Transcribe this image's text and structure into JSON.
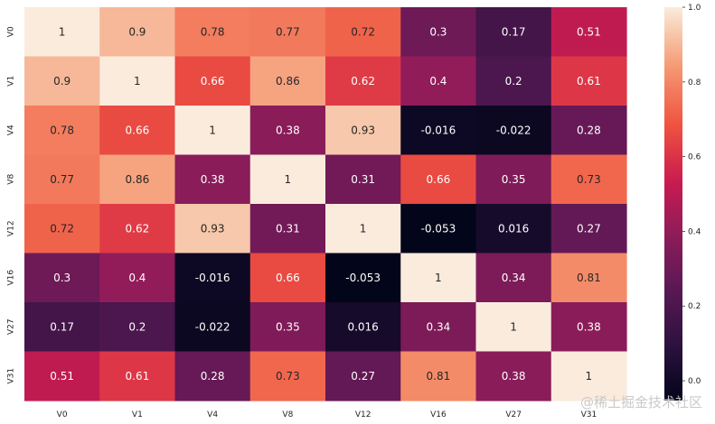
{
  "chart_data": {
    "type": "heatmap",
    "title": "",
    "xlabel": "",
    "ylabel": "",
    "categories": [
      "V0",
      "V1",
      "V4",
      "V8",
      "V12",
      "V16",
      "V27",
      "V31"
    ],
    "values": [
      [
        1,
        0.9,
        0.78,
        0.77,
        0.72,
        0.3,
        0.17,
        0.51
      ],
      [
        0.9,
        1,
        0.66,
        0.86,
        0.62,
        0.4,
        0.2,
        0.61
      ],
      [
        0.78,
        0.66,
        1,
        0.38,
        0.93,
        -0.016,
        -0.022,
        0.28
      ],
      [
        0.77,
        0.86,
        0.38,
        1,
        0.31,
        0.66,
        0.35,
        0.73
      ],
      [
        0.72,
        0.62,
        0.93,
        0.31,
        1,
        -0.053,
        0.016,
        0.27
      ],
      [
        0.3,
        0.4,
        -0.016,
        0.66,
        -0.053,
        1,
        0.34,
        0.81
      ],
      [
        0.17,
        0.2,
        -0.022,
        0.35,
        0.016,
        0.34,
        1,
        0.38
      ],
      [
        0.51,
        0.61,
        0.28,
        0.73,
        0.27,
        0.81,
        0.38,
        1
      ]
    ],
    "colorbar": {
      "range": [
        -0.053,
        1.0
      ],
      "ticks": [
        0.0,
        0.2,
        0.4,
        0.6,
        0.8,
        1.0
      ],
      "tick_labels": [
        "0.0",
        "0.2",
        "0.4",
        "0.6",
        "0.8",
        "1.0"
      ],
      "colormap": "rocket"
    },
    "annotations": true
  },
  "watermark": "@稀土掘金技术社区"
}
